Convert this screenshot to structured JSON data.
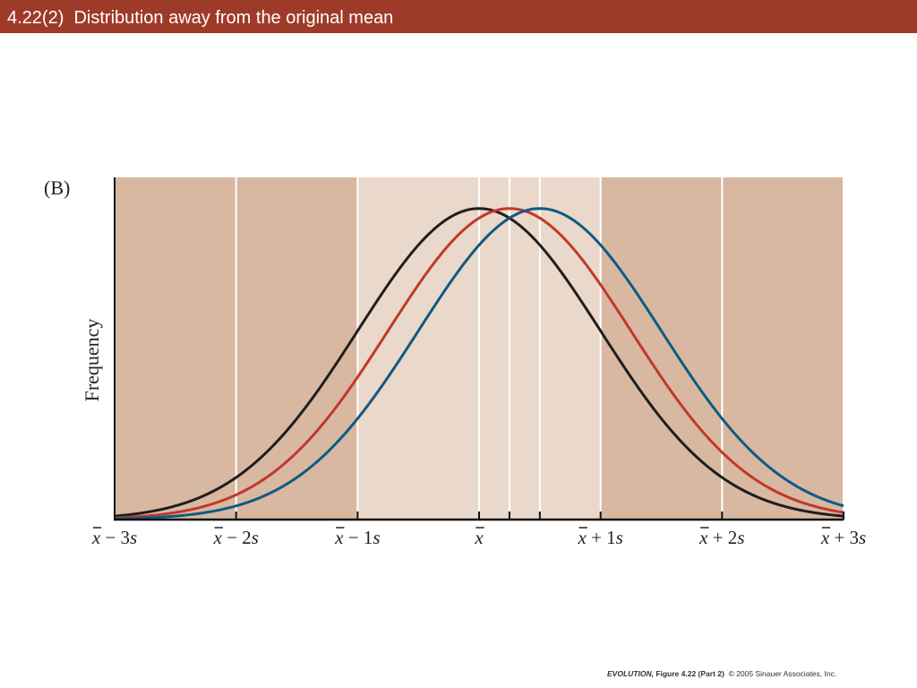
{
  "slide": {
    "title": "4.22(2)  Distribution away from the original mean",
    "credit_book": "EVOLUTION,",
    "credit_figure": " Figure 4.22 (Part 2)",
    "credit_rest": "  © 2005 Sinauer Associates, Inc."
  },
  "colors": {
    "title_bar": "#9e3a28",
    "panel_dark": "#d8b8a0",
    "panel_light": "#ead8ca",
    "grid_line": "#ffffff",
    "axis": "#111111"
  },
  "chart_data": {
    "type": "line",
    "panel_label": "(B)",
    "ylabel": "Frequency",
    "xlabel": "",
    "xlim": [
      -3,
      3
    ],
    "ylim": [
      0,
      1.1
    ],
    "x_tick_labels": [
      {
        "x": -3,
        "mark": "x",
        "rest": " − 3s"
      },
      {
        "x": -2,
        "mark": "x",
        "rest": " − 2s"
      },
      {
        "x": -1,
        "mark": "x",
        "rest": " − 1s"
      },
      {
        "x": 0,
        "mark": "x",
        "rest": ""
      },
      {
        "x": 1,
        "mark": "x",
        "rest": " + 1s"
      },
      {
        "x": 2,
        "mark": "x",
        "rest": " + 2s"
      },
      {
        "x": 3,
        "mark": "x",
        "rest": " + 3s"
      }
    ],
    "extra_ticks": [
      0.25,
      0.5
    ],
    "light_band": [
      -1,
      1
    ],
    "series": [
      {
        "color": "#1e1e1e",
        "mean": 0.0,
        "sd": 1.0,
        "peak": 1.0
      },
      {
        "color": "#c0392b",
        "mean": 0.25,
        "sd": 1.0,
        "peak": 1.0
      },
      {
        "color": "#0f5a84",
        "mean": 0.5,
        "sd": 1.0,
        "peak": 1.0
      }
    ]
  }
}
